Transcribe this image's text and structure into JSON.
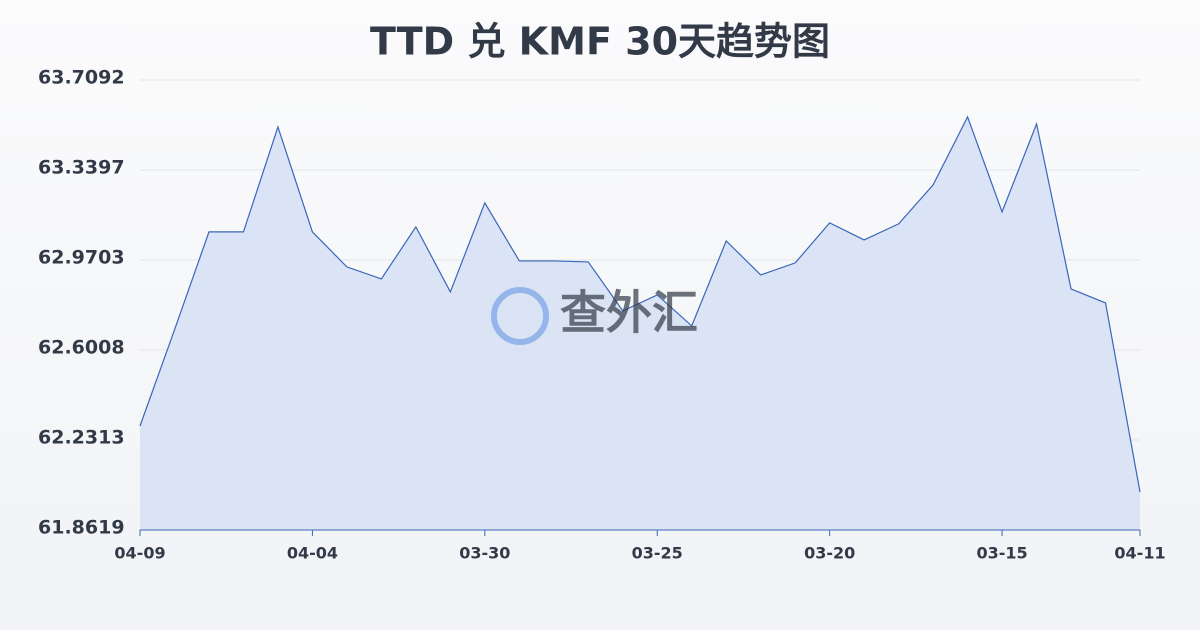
{
  "chart_data": {
    "type": "area",
    "title": "TTD 兑 KMF 30天趋势图",
    "watermark": "查外汇",
    "categories": [
      "04-09",
      null,
      null,
      null,
      null,
      "04-04",
      null,
      null,
      null,
      null,
      "03-30",
      null,
      null,
      null,
      null,
      "03-25",
      null,
      null,
      null,
      null,
      "03-20",
      null,
      null,
      null,
      null,
      "03-15",
      null,
      null,
      null,
      "04-11"
    ],
    "values": [
      62.2888,
      62.683,
      63.0856,
      63.0856,
      63.5166,
      63.0856,
      62.9419,
      62.8927,
      63.1062,
      62.8393,
      63.2047,
      62.9665,
      62.9665,
      62.9624,
      62.7613,
      62.827,
      62.6997,
      63.0487,
      62.9091,
      62.9583,
      63.1226,
      63.0528,
      63.1185,
      63.2786,
      63.5576,
      63.1677,
      63.5289,
      62.8516,
      62.7941,
      62.0179
    ],
    "color": "#3a66b8",
    "fill": "#d6e0f5",
    "ylim": [
      61.8619,
      63.7092
    ],
    "yticks": [
      61.8619,
      62.2313,
      62.6008,
      62.9703,
      63.3397,
      63.7092
    ],
    "grid": true
  }
}
